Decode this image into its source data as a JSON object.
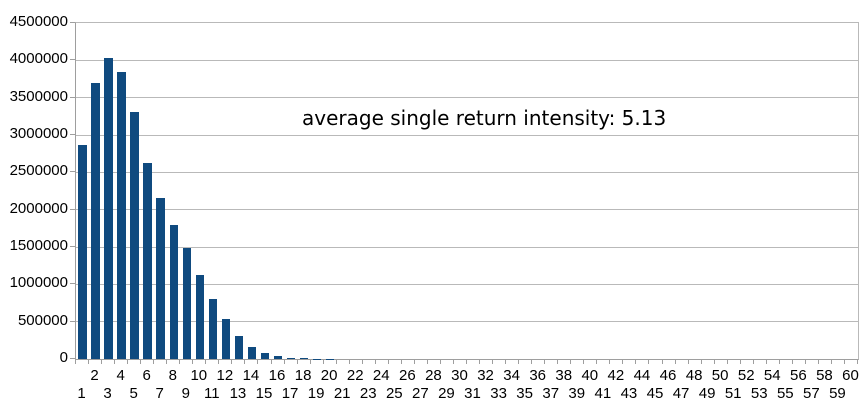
{
  "chart_data": {
    "type": "bar",
    "title": "",
    "annotation": "average single return intensity: 5.13",
    "xlabel": "",
    "ylabel": "",
    "x": [
      1,
      2,
      3,
      4,
      5,
      6,
      7,
      8,
      9,
      10,
      11,
      12,
      13,
      14,
      15,
      16,
      17,
      18,
      19,
      20,
      21,
      22,
      23,
      24,
      25,
      26,
      27,
      28,
      29,
      30,
      31,
      32,
      33,
      34,
      35,
      36,
      37,
      38,
      39,
      40,
      41,
      42,
      43,
      44,
      45,
      46,
      47,
      48,
      49,
      50,
      51,
      52,
      53,
      54,
      55,
      56,
      57,
      58,
      59,
      60
    ],
    "values": [
      2870000,
      3690000,
      4030000,
      3840000,
      3310000,
      2620000,
      2150000,
      1800000,
      1490000,
      1130000,
      810000,
      540000,
      310000,
      155000,
      85000,
      40000,
      18000,
      7000,
      3000,
      1500,
      0,
      0,
      0,
      0,
      0,
      0,
      0,
      0,
      0,
      0,
      0,
      0,
      0,
      0,
      0,
      0,
      0,
      0,
      0,
      0,
      0,
      0,
      0,
      0,
      0,
      0,
      0,
      0,
      0,
      0,
      0,
      0,
      0,
      0,
      0,
      0,
      0,
      0,
      0,
      0
    ],
    "ylim": [
      0,
      4500000
    ],
    "ytick_interval": 500000,
    "ytick_labels": [
      "0",
      "500000",
      "1000000",
      "1500000",
      "2000000",
      "2500000",
      "3000000",
      "3500000",
      "4000000",
      "4500000"
    ],
    "grid": true,
    "legend": "none",
    "bar_color": "#0f4a7f",
    "gridline_color": "#b9b9b9",
    "axis_color": "#9e9e9e",
    "background_color": "#ffffff"
  }
}
